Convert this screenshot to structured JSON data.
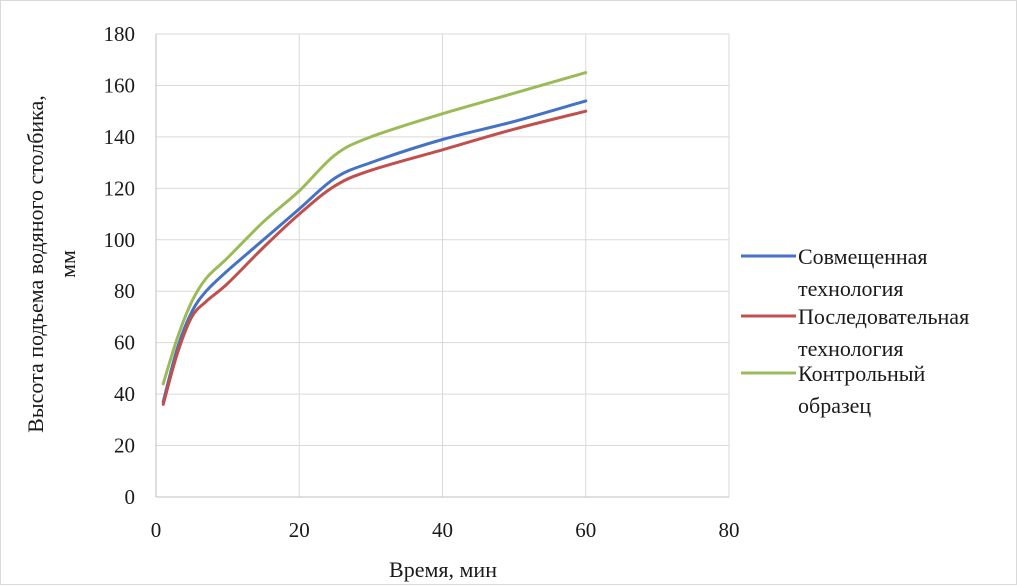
{
  "chart_data": {
    "type": "line",
    "title": "",
    "xlabel": "Время, мин",
    "ylabel_line1": "Высота подъема водяного столбика,",
    "ylabel_line2": "мм",
    "xlim": [
      0,
      80
    ],
    "ylim": [
      0,
      180
    ],
    "x_ticks": [
      "0",
      "20",
      "40",
      "60",
      "80"
    ],
    "y_ticks": [
      "0",
      "20",
      "40",
      "60",
      "80",
      "100",
      "120",
      "140",
      "160",
      "180"
    ],
    "grid": "vertical and horizontal",
    "legend_position": "right",
    "series": [
      {
        "name": "Совмещенная технология",
        "legend_lines": [
          "Совмещенная",
          "технология"
        ],
        "color": "#4472c4",
        "points": [
          [
            1,
            37
          ],
          [
            3,
            58
          ],
          [
            5,
            72
          ],
          [
            7,
            80
          ],
          [
            10,
            88
          ],
          [
            15,
            100
          ],
          [
            20,
            112
          ],
          [
            25,
            124
          ],
          [
            30,
            130
          ],
          [
            40,
            139
          ],
          [
            50,
            146
          ],
          [
            60,
            154
          ]
        ]
      },
      {
        "name": "Последовательная технология",
        "legend_lines": [
          "Последовательная",
          "технология"
        ],
        "color": "#c0504d",
        "points": [
          [
            1,
            36
          ],
          [
            3,
            56
          ],
          [
            5,
            70
          ],
          [
            7,
            76
          ],
          [
            10,
            83
          ],
          [
            15,
            97
          ],
          [
            20,
            110
          ],
          [
            25,
            121
          ],
          [
            30,
            127
          ],
          [
            40,
            135
          ],
          [
            50,
            143
          ],
          [
            60,
            150
          ]
        ]
      },
      {
        "name": "Контрольный образец",
        "legend_lines": [
          "Контрольный",
          "образец"
        ],
        "color": "#9bbb59",
        "points": [
          [
            1,
            44
          ],
          [
            3,
            62
          ],
          [
            5,
            76
          ],
          [
            7,
            85
          ],
          [
            10,
            93
          ],
          [
            15,
            107
          ],
          [
            20,
            119
          ],
          [
            25,
            133
          ],
          [
            30,
            140
          ],
          [
            40,
            149
          ],
          [
            50,
            157
          ],
          [
            60,
            165
          ]
        ]
      }
    ]
  }
}
